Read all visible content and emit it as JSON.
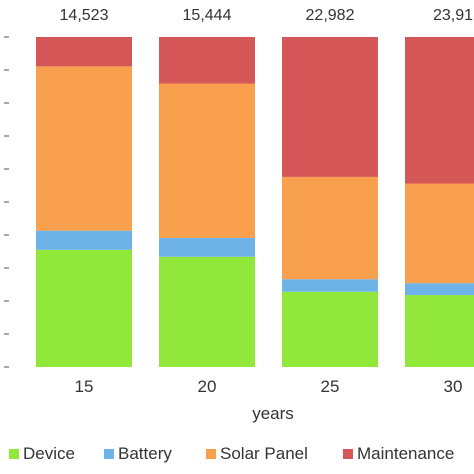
{
  "chart_data": {
    "type": "bar",
    "stacked": "percent",
    "categories": [
      "15",
      "20",
      "25",
      "30"
    ],
    "totals": [
      "14,523",
      "15,444",
      "22,982",
      "23,91"
    ],
    "series": [
      {
        "name": "Device",
        "color": "#92e83a",
        "values": [
          0.355,
          0.334,
          0.228,
          0.218
        ]
      },
      {
        "name": "Battery",
        "color": "#6db3e8",
        "values": [
          0.058,
          0.057,
          0.038,
          0.036
        ]
      },
      {
        "name": "Solar Panel",
        "color": "#f9a04f",
        "values": [
          0.498,
          0.468,
          0.31,
          0.302
        ]
      },
      {
        "name": "Maintenance",
        "color": "#d65757",
        "values": [
          0.089,
          0.141,
          0.424,
          0.444
        ]
      }
    ],
    "xlabel": "years",
    "ylim": [
      0,
      1
    ],
    "yticks": [
      "",
      "",
      "",
      "",
      "",
      "",
      "",
      "",
      "",
      "",
      ""
    ],
    "legend_position": "bottom",
    "grid": false
  }
}
